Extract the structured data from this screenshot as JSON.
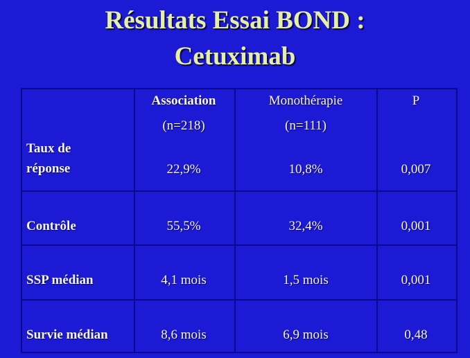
{
  "title": [
    "Résultats Essai BOND :",
    "Cetuximab"
  ],
  "table": {
    "header": [
      {
        "label": "Association",
        "sub": "(n=218)"
      },
      {
        "label": "Monothérapie",
        "sub": "(n=111)"
      },
      {
        "label": "P"
      }
    ],
    "rows": [
      [
        "Taux de réponse",
        "22,9%",
        "10,8%",
        "0,007"
      ],
      [
        "Contrôle",
        "55,5%",
        "32,4%",
        "0,001"
      ],
      [
        "SSP médian",
        "4,1 mois",
        "1,5 mois",
        "0,001"
      ],
      [
        "Survie médian",
        "8,6 mois",
        "6,9 mois",
        "0,48"
      ]
    ]
  }
}
